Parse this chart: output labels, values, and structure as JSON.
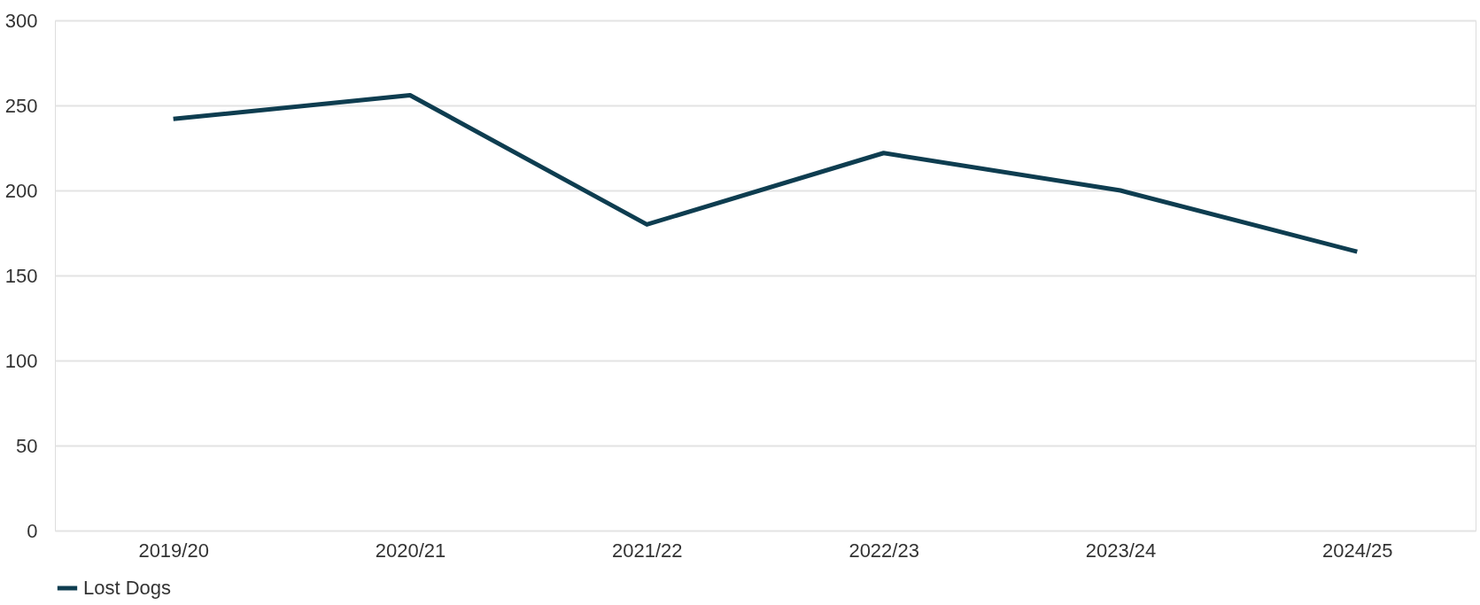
{
  "chart_data": {
    "type": "line",
    "categories": [
      "2019/20",
      "2020/21",
      "2021/22",
      "2022/23",
      "2023/24",
      "2024/25"
    ],
    "series": [
      {
        "name": "Lost Dogs",
        "color": "#0e3d50",
        "values": [
          242,
          256,
          180,
          222,
          200,
          164
        ]
      }
    ],
    "ylim": [
      0,
      300
    ],
    "yticks": [
      0,
      50,
      100,
      150,
      200,
      250,
      300
    ],
    "grid": "y",
    "legend": "bottom",
    "marker": "none",
    "line_style": "solid"
  }
}
